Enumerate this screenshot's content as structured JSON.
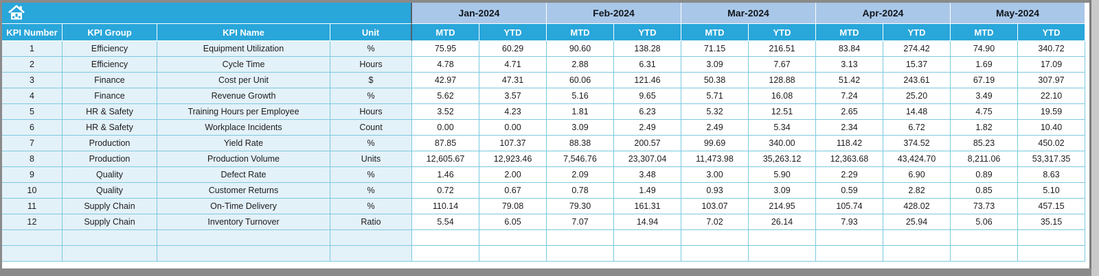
{
  "colors": {
    "header_cyan": "#29a6da",
    "month_band_blue": "#a9c7e8",
    "fixed_cell_blue": "#e3f1f9",
    "grid_teal": "#7bc9df",
    "frame_gray": "#8a8a8a"
  },
  "table": {
    "corner_icon": "home-icon",
    "fixed_headers": [
      "KPI Number",
      "KPI Group",
      "KPI Name",
      "Unit"
    ],
    "months": [
      "Jan-2024",
      "Feb-2024",
      "Mar-2024",
      "Apr-2024",
      "May-2024"
    ],
    "sub_headers": [
      "MTD",
      "YTD"
    ],
    "empty_row_count": 2,
    "rows": [
      {
        "number": "1",
        "group": "Efficiency",
        "name": "Equipment Utilization",
        "unit": "%",
        "values": [
          "75.95",
          "60.29",
          "90.60",
          "138.28",
          "71.15",
          "216.51",
          "83.84",
          "274.42",
          "74.90",
          "340.72"
        ]
      },
      {
        "number": "2",
        "group": "Efficiency",
        "name": "Cycle Time",
        "unit": "Hours",
        "values": [
          "4.78",
          "4.71",
          "2.88",
          "6.31",
          "3.09",
          "7.67",
          "3.13",
          "15.37",
          "1.69",
          "17.09"
        ]
      },
      {
        "number": "3",
        "group": "Finance",
        "name": "Cost per Unit",
        "unit": "$",
        "values": [
          "42.97",
          "47.31",
          "60.06",
          "121.46",
          "50.38",
          "128.88",
          "51.42",
          "243.61",
          "67.19",
          "307.97"
        ]
      },
      {
        "number": "4",
        "group": "Finance",
        "name": "Revenue Growth",
        "unit": "%",
        "values": [
          "5.62",
          "3.57",
          "5.16",
          "9.65",
          "5.71",
          "16.08",
          "7.24",
          "25.20",
          "3.49",
          "22.10"
        ]
      },
      {
        "number": "5",
        "group": "HR & Safety",
        "name": "Training Hours per Employee",
        "unit": "Hours",
        "values": [
          "3.52",
          "4.23",
          "1.81",
          "6.23",
          "5.32",
          "12.51",
          "2.65",
          "14.48",
          "4.75",
          "19.59"
        ]
      },
      {
        "number": "6",
        "group": "HR & Safety",
        "name": "Workplace Incidents",
        "unit": "Count",
        "values": [
          "0.00",
          "0.00",
          "3.09",
          "2.49",
          "2.49",
          "5.34",
          "2.34",
          "6.72",
          "1.82",
          "10.40"
        ]
      },
      {
        "number": "7",
        "group": "Production",
        "name": "Yield Rate",
        "unit": "%",
        "values": [
          "87.85",
          "107.37",
          "88.38",
          "200.57",
          "99.69",
          "340.00",
          "118.42",
          "374.52",
          "85.23",
          "450.02"
        ]
      },
      {
        "number": "8",
        "group": "Production",
        "name": "Production Volume",
        "unit": "Units",
        "values": [
          "12,605.67",
          "12,923.46",
          "7,546.76",
          "23,307.04",
          "11,473.98",
          "35,263.12",
          "12,363.68",
          "43,424.70",
          "8,211.06",
          "53,317.35"
        ]
      },
      {
        "number": "9",
        "group": "Quality",
        "name": "Defect Rate",
        "unit": "%",
        "values": [
          "1.46",
          "2.00",
          "2.09",
          "3.48",
          "3.00",
          "5.90",
          "2.29",
          "6.90",
          "0.89",
          "8.63"
        ]
      },
      {
        "number": "10",
        "group": "Quality",
        "name": "Customer Returns",
        "unit": "%",
        "values": [
          "0.72",
          "0.67",
          "0.78",
          "1.49",
          "0.93",
          "3.09",
          "0.59",
          "2.82",
          "0.85",
          "5.10"
        ]
      },
      {
        "number": "11",
        "group": "Supply Chain",
        "name": "On-Time Delivery",
        "unit": "%",
        "values": [
          "110.14",
          "79.08",
          "79.30",
          "161.31",
          "103.07",
          "214.95",
          "105.74",
          "428.02",
          "73.73",
          "457.15"
        ]
      },
      {
        "number": "12",
        "group": "Supply Chain",
        "name": "Inventory Turnover",
        "unit": "Ratio",
        "values": [
          "5.54",
          "6.05",
          "7.07",
          "14.94",
          "7.02",
          "26.14",
          "7.93",
          "25.94",
          "5.06",
          "35.15"
        ]
      }
    ]
  }
}
